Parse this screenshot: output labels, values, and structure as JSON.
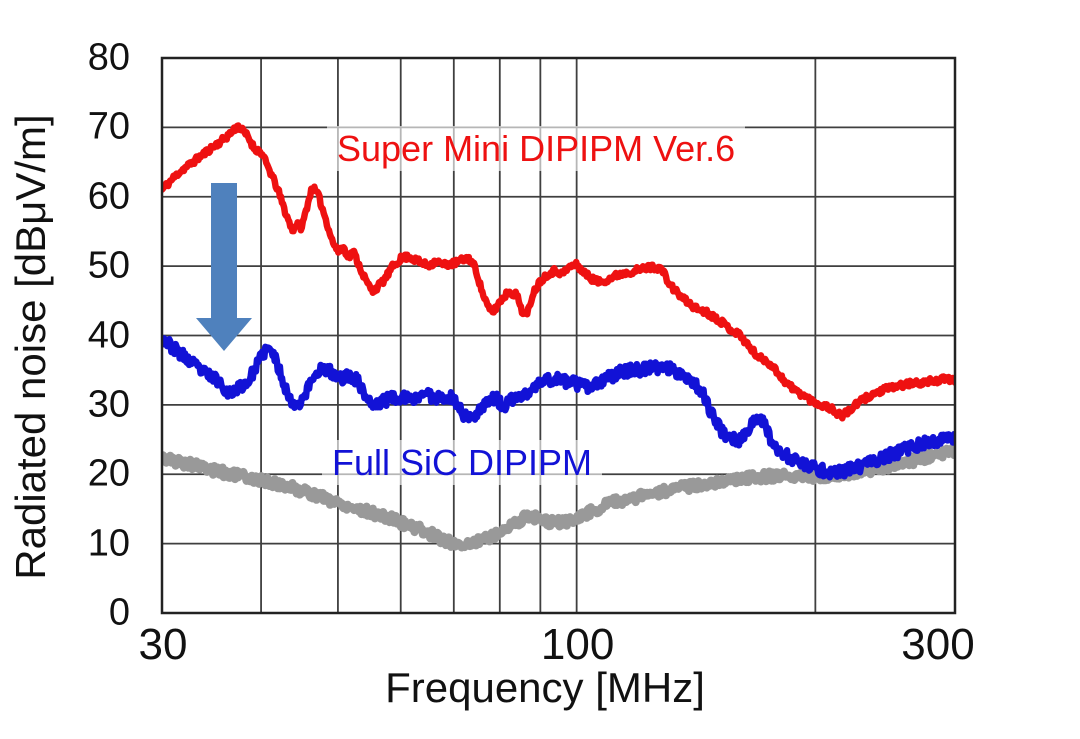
{
  "figure_title": "",
  "axes": {
    "y_title": "Radiated noise [dBμV/m]",
    "x_title": "Frequency [MHz]",
    "y_ticks": [
      {
        "value": 80,
        "label": "80"
      },
      {
        "value": 70,
        "label": "70"
      },
      {
        "value": 60,
        "label": "60"
      },
      {
        "value": 50,
        "label": "50"
      },
      {
        "value": 40,
        "label": "40"
      },
      {
        "value": 30,
        "label": "30"
      },
      {
        "value": 20,
        "label": "20"
      },
      {
        "value": 10,
        "label": "10"
      },
      {
        "value": 0,
        "label": "0"
      }
    ],
    "x_ticks": [
      {
        "value": 30,
        "label": "30"
      },
      {
        "value": 100,
        "label": "100"
      },
      {
        "value": 300,
        "label": "300"
      }
    ]
  },
  "annotations": {
    "red_series_label": "Super Mini DIPIPM Ver.6",
    "blue_series_label": "Full SiC DIPIPM",
    "down_arrow_color": "#4f81bd"
  },
  "colors": {
    "red_line": "#ee1111",
    "blue_line": "#1212d6",
    "gray_line": "#999999",
    "grid": "#3f3f3f",
    "border": "#222222",
    "text": "#111111",
    "label_backdrop": "rgba(255,255,255,0.62)"
  },
  "chart_data": {
    "type": "line",
    "title": "",
    "xlabel": "Frequency [MHz]",
    "ylabel": "Radiated noise [dBμV/m]",
    "x_scale": "log",
    "xlim": [
      30,
      300
    ],
    "ylim": [
      0,
      80
    ],
    "grid": true,
    "x_gridlines": [
      30,
      40,
      50,
      60,
      70,
      80,
      90,
      100,
      200,
      300
    ],
    "y_gridlines": [
      0,
      10,
      20,
      30,
      40,
      50,
      60,
      70,
      80
    ],
    "legend_position": "in-plot text annotations",
    "series": [
      {
        "name": "Super Mini DIPIPM Ver.6",
        "color": "#ee1111",
        "units": "dBuV/m vs MHz",
        "points": [
          [
            30,
            61
          ],
          [
            31.5,
            63.5
          ],
          [
            33,
            65.2
          ],
          [
            34.5,
            66.9
          ],
          [
            36,
            68.4
          ],
          [
            37.4,
            70.2
          ],
          [
            38.5,
            68.7
          ],
          [
            39.2,
            67
          ],
          [
            40,
            66.4
          ],
          [
            41,
            63.8
          ],
          [
            42,
            61
          ],
          [
            43,
            57.5
          ],
          [
            43.8,
            55.2
          ],
          [
            44.4,
            56.1
          ],
          [
            45,
            55.5
          ],
          [
            45.8,
            59
          ],
          [
            46.4,
            61.4
          ],
          [
            47.2,
            60.3
          ],
          [
            48.2,
            57
          ],
          [
            49.2,
            53.6
          ],
          [
            50,
            52.1
          ],
          [
            50.8,
            52.7
          ],
          [
            51.6,
            51.3
          ],
          [
            52.3,
            52.1
          ],
          [
            53.4,
            49.6
          ],
          [
            54.4,
            47.6
          ],
          [
            55.3,
            46.4
          ],
          [
            56.2,
            47.1
          ],
          [
            57.2,
            48
          ],
          [
            58.6,
            49.9
          ],
          [
            60,
            51.1
          ],
          [
            61.5,
            51.4
          ],
          [
            63,
            50.7
          ],
          [
            65,
            50.1
          ],
          [
            66.5,
            50.7
          ],
          [
            68,
            50.2
          ],
          [
            70,
            50.4
          ],
          [
            71.5,
            50.8
          ],
          [
            73,
            51.2
          ],
          [
            74.5,
            49.8
          ],
          [
            76,
            46.3
          ],
          [
            77.5,
            43.8
          ],
          [
            78.5,
            43.4
          ],
          [
            80,
            44.9
          ],
          [
            82,
            46.3
          ],
          [
            84,
            45.9
          ],
          [
            85.6,
            43.2
          ],
          [
            86.6,
            42.9
          ],
          [
            88,
            46
          ],
          [
            90,
            47.9
          ],
          [
            92,
            48.9
          ],
          [
            94,
            49.4
          ],
          [
            96,
            48.9
          ],
          [
            98,
            49.9
          ],
          [
            100,
            50.2
          ],
          [
            102,
            49.2
          ],
          [
            104,
            48.3
          ],
          [
            107,
            47.7
          ],
          [
            110,
            48.2
          ],
          [
            113,
            48.8
          ],
          [
            117,
            49.2
          ],
          [
            121,
            49.6
          ],
          [
            125,
            49.9
          ],
          [
            128,
            49.6
          ],
          [
            131,
            47.3
          ],
          [
            136,
            45.4
          ],
          [
            141,
            44
          ],
          [
            146,
            43.3
          ],
          [
            151,
            42.3
          ],
          [
            156,
            41
          ],
          [
            161,
            40
          ],
          [
            166,
            38
          ],
          [
            170,
            36.8
          ],
          [
            174,
            36.3
          ],
          [
            178,
            35.1
          ],
          [
            183,
            33.4
          ],
          [
            188,
            32.2
          ],
          [
            193,
            31.4
          ],
          [
            198,
            30.6
          ],
          [
            203,
            30
          ],
          [
            208,
            29.7
          ],
          [
            213,
            28.8
          ],
          [
            216,
            28.4
          ],
          [
            220,
            29
          ],
          [
            225,
            30
          ],
          [
            230,
            30.8
          ],
          [
            236,
            31.5
          ],
          [
            243,
            32.1
          ],
          [
            250,
            32.5
          ],
          [
            258,
            32.9
          ],
          [
            267,
            33.1
          ],
          [
            276,
            33.3
          ],
          [
            286,
            33.6
          ],
          [
            294,
            33.7
          ],
          [
            300,
            33.5
          ]
        ]
      },
      {
        "name": "Full SiC DIPIPM",
        "color": "#1212d6",
        "units": "dBuV/m vs MHz",
        "points": [
          [
            30,
            39.6
          ],
          [
            31,
            38.2
          ],
          [
            32.5,
            36.3
          ],
          [
            34,
            34.5
          ],
          [
            35.3,
            33.6
          ],
          [
            36.5,
            31.6
          ],
          [
            37.5,
            32.6
          ],
          [
            38.5,
            33.3
          ],
          [
            39.5,
            35.7
          ],
          [
            40.6,
            38.1
          ],
          [
            41.4,
            37.5
          ],
          [
            42.5,
            34
          ],
          [
            43.5,
            30.6
          ],
          [
            44.5,
            30.1
          ],
          [
            45.5,
            31.6
          ],
          [
            46.5,
            34
          ],
          [
            47.5,
            35.2
          ],
          [
            48.6,
            35
          ],
          [
            50,
            33.8
          ],
          [
            51.5,
            34.1
          ],
          [
            52.8,
            33.7
          ],
          [
            54,
            31.6
          ],
          [
            55.4,
            29.7
          ],
          [
            56.5,
            30.3
          ],
          [
            58,
            30.9
          ],
          [
            60,
            31.2
          ],
          [
            62,
            30.6
          ],
          [
            64,
            31.8
          ],
          [
            66,
            31.1
          ],
          [
            68,
            31.3
          ],
          [
            70,
            30.9
          ],
          [
            72,
            28.6
          ],
          [
            73.5,
            27.9
          ],
          [
            75,
            29.1
          ],
          [
            77,
            30.5
          ],
          [
            79,
            31
          ],
          [
            81,
            29.6
          ],
          [
            83,
            30.8
          ],
          [
            85,
            31.2
          ],
          [
            87,
            31.7
          ],
          [
            89,
            32.8
          ],
          [
            91,
            33.5
          ],
          [
            94,
            33.8
          ],
          [
            97,
            33.4
          ],
          [
            100,
            33
          ],
          [
            103,
            32.5
          ],
          [
            106,
            32.9
          ],
          [
            110,
            34
          ],
          [
            114,
            34.8
          ],
          [
            118,
            35
          ],
          [
            123,
            35.2
          ],
          [
            128,
            35.5
          ],
          [
            132,
            35.1
          ],
          [
            136,
            34.5
          ],
          [
            140,
            33.4
          ],
          [
            144,
            32
          ],
          [
            148,
            28.6
          ],
          [
            152,
            26.4
          ],
          [
            156,
            25.2
          ],
          [
            160,
            24.9
          ],
          [
            163,
            25.5
          ],
          [
            166,
            27
          ],
          [
            169,
            28.4
          ],
          [
            172,
            27.5
          ],
          [
            175,
            25.5
          ],
          [
            178,
            24.1
          ],
          [
            182,
            23
          ],
          [
            186,
            22.3
          ],
          [
            190,
            21.8
          ],
          [
            195,
            21.2
          ],
          [
            200,
            20.8
          ],
          [
            206,
            20.4
          ],
          [
            212,
            20.3
          ],
          [
            218,
            20.5
          ],
          [
            225,
            20.9
          ],
          [
            232,
            21.4
          ],
          [
            240,
            22.2
          ],
          [
            250,
            22.9
          ],
          [
            260,
            23.6
          ],
          [
            270,
            24.2
          ],
          [
            280,
            24.7
          ],
          [
            290,
            25
          ],
          [
            300,
            25.4
          ]
        ]
      },
      {
        "name": "(unlabeled gray background trace)",
        "color": "#999999",
        "units": "dBuV/m vs MHz",
        "points": [
          [
            30,
            22.4
          ],
          [
            32,
            21.6
          ],
          [
            34,
            20.9
          ],
          [
            36,
            20.2
          ],
          [
            38,
            19.7
          ],
          [
            40,
            19.1
          ],
          [
            42,
            18.6
          ],
          [
            44,
            18
          ],
          [
            46,
            17.3
          ],
          [
            48,
            16.6
          ],
          [
            50,
            15.9
          ],
          [
            53,
            15
          ],
          [
            56,
            14.2
          ],
          [
            59,
            13.4
          ],
          [
            62,
            12.5
          ],
          [
            65,
            11.6
          ],
          [
            68,
            10.5
          ],
          [
            70,
            10
          ],
          [
            72,
            9.9
          ],
          [
            74,
            10.1
          ],
          [
            76,
            10.6
          ],
          [
            78,
            11.1
          ],
          [
            80,
            11.7
          ],
          [
            82,
            12.3
          ],
          [
            84,
            13.1
          ],
          [
            86,
            13.8
          ],
          [
            88,
            13.9
          ],
          [
            91,
            13.2
          ],
          [
            94,
            13
          ],
          [
            97,
            13.2
          ],
          [
            100,
            13.6
          ],
          [
            103,
            14.4
          ],
          [
            106,
            15
          ],
          [
            110,
            15.8
          ],
          [
            115,
            16.3
          ],
          [
            120,
            16.8
          ],
          [
            126,
            17.3
          ],
          [
            132,
            17.8
          ],
          [
            140,
            18.3
          ],
          [
            148,
            18.8
          ],
          [
            156,
            19.2
          ],
          [
            165,
            19.5
          ],
          [
            175,
            19.7
          ],
          [
            185,
            19.8
          ],
          [
            195,
            19.7
          ],
          [
            205,
            19.8
          ],
          [
            215,
            20
          ],
          [
            225,
            20.3
          ],
          [
            235,
            20.7
          ],
          [
            245,
            21.1
          ],
          [
            255,
            21.5
          ],
          [
            265,
            21.9
          ],
          [
            275,
            22.3
          ],
          [
            285,
            22.8
          ],
          [
            295,
            23.3
          ],
          [
            300,
            23.5
          ]
        ]
      }
    ]
  }
}
